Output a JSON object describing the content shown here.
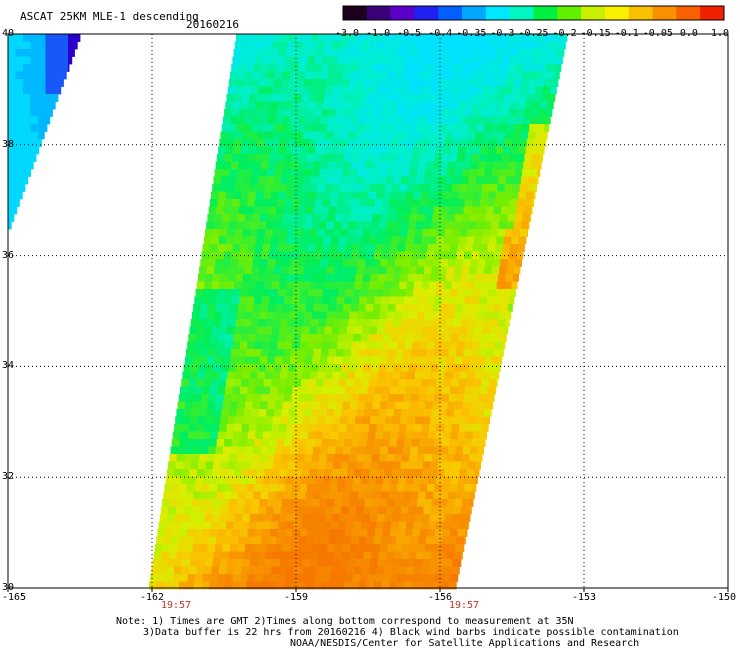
{
  "header": {
    "title": "ASCAT 25KM MLE-1 descending",
    "date": "20160216"
  },
  "colorbar": {
    "labels": [
      "-3.0",
      "-1.0",
      "-0.5",
      "-0.4",
      "-0.35",
      "-0.3",
      "-0.25",
      "-0.2",
      "-0.15",
      "-0.1",
      "-0.05",
      "0.0",
      "1.0"
    ],
    "colors": [
      "#1a001a",
      "#3a0078",
      "#5a00c8",
      "#2020f0",
      "#0060ff",
      "#00a8ff",
      "#00e8ff",
      "#00f8c0",
      "#00f040",
      "#60f000",
      "#c8f000",
      "#f8f000",
      "#f8c000",
      "#f89000",
      "#f86000",
      "#f02000"
    ]
  },
  "axes": {
    "y_ticks": [
      "40",
      "38",
      "36",
      "34",
      "32",
      "30"
    ],
    "x_ticks": [
      "-165",
      "-162",
      "-159",
      "-156",
      "-153",
      "-150"
    ],
    "lon_range": [
      -165,
      -150
    ],
    "lat_range": [
      30,
      40
    ],
    "times": [
      {
        "label": "19:57",
        "lon": -161.5
      },
      {
        "label": "19:57",
        "lon": -155.5
      }
    ]
  },
  "notes": [
    "Note: 1) Times are GMT 2)Times along bottom correspond to measurement at 35N",
    "3)Data buffer is 22 hrs from 20160216 4) Black wind barbs indicate possible contamination",
    "NOAA/NESDIS/Center for Satellite Applications and Research"
  ]
}
